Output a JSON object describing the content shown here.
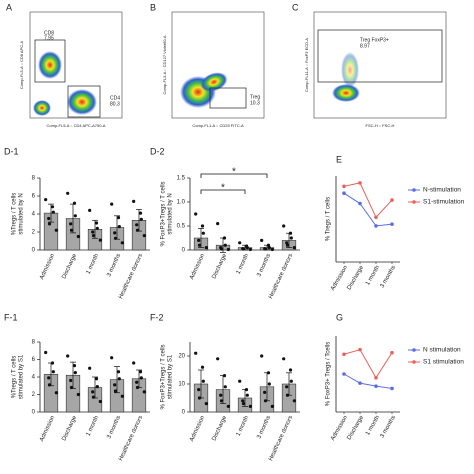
{
  "flow_panels": [
    {
      "label": "A",
      "xlabel": "Comp-FL5-A :: CD4 APC-A750-A",
      "ylabel": "Comp-FL5-A :: CD8 APC-A",
      "gates": [
        {
          "name": "CD8",
          "value": 7.95
        },
        {
          "name": "CD4",
          "value": 80.3
        }
      ]
    },
    {
      "label": "B",
      "xlabel": "Comp-FL1-A :: CD25 FITC-A",
      "ylabel": "Comp-FL3-A :: CD127 Violet60-A",
      "gates": [
        {
          "name": "Treg",
          "value": 10.3
        }
      ]
    },
    {
      "label": "C",
      "xlabel": "FSC-H :: FSC-H",
      "ylabel": "Comp-FL11-A :: FoxP3 ECD-A",
      "gates": [
        {
          "name": "Treg FoxP3+",
          "value": 8.97
        }
      ]
    }
  ],
  "chart_data": [
    {
      "type": "bar",
      "label": "D-1",
      "ylabel": [
        "%Tregs / T cells",
        "stimulated by N"
      ],
      "categories": [
        "Admission",
        "Discharge",
        "1 month",
        "3 months",
        "Healthcare donors"
      ],
      "values": [
        4.1,
        3.5,
        2.3,
        2.5,
        3.3
      ],
      "errors": [
        1.0,
        1.6,
        1.0,
        1.3,
        1.2
      ],
      "points": [
        [
          5.6,
          4.8,
          4.2,
          3.5,
          2.9,
          2.2
        ],
        [
          6.3,
          5.2,
          3.8,
          2.9,
          2.2,
          1.5
        ],
        [
          4.4,
          3.0,
          2.4,
          2.0,
          1.6,
          1.1
        ],
        [
          5.1,
          3.6,
          2.6,
          1.9,
          1.3,
          0.8
        ],
        [
          5.4,
          4.1,
          3.4,
          2.8,
          2.2,
          1.6
        ]
      ],
      "color": "#a6a6a6",
      "ylim": [
        0,
        8
      ],
      "yticks": [
        0,
        2,
        4,
        6,
        8
      ]
    },
    {
      "type": "bar",
      "label": "D-2",
      "ylabel": [
        "% FoxP3+Tregs / T cells",
        "stimulated by N"
      ],
      "categories": [
        "Admission",
        "Discharge",
        "1 month",
        "3 months",
        "Healthcare donors"
      ],
      "values": [
        0.25,
        0.1,
        0.05,
        0.05,
        0.2
      ],
      "errors": [
        0.2,
        0.15,
        0.05,
        0.05,
        0.15
      ],
      "points": [
        [
          0.75,
          0.5,
          0.35,
          0.2,
          0.1,
          0.05
        ],
        [
          0.55,
          0.25,
          0.1,
          0.05,
          0.02,
          0.01
        ],
        [
          0.15,
          0.08,
          0.05,
          0.03,
          0.02,
          0.01
        ],
        [
          0.2,
          0.1,
          0.05,
          0.03,
          0.02,
          0.01
        ],
        [
          0.5,
          0.35,
          0.25,
          0.15,
          0.1,
          0.05
        ]
      ],
      "color": "#a6a6a6",
      "ylim": [
        0,
        1.5
      ],
      "yticks": [
        0,
        0.5,
        {
          "value": 1,
          "label": "1.0"
        },
        1.5
      ],
      "annotations": [
        "*",
        "*"
      ]
    },
    {
      "type": "line",
      "label": "E",
      "ylabel": [
        "% Tregs / T cells"
      ],
      "categories": [
        "Admission",
        "Discharge",
        "1 month",
        "3 months"
      ],
      "series": [
        {
          "name": "N-stimulation",
          "color": "#5b6ee1",
          "values": [
            4.0,
            3.4,
            2.1,
            2.2
          ]
        },
        {
          "name": "S1-stimulation",
          "color": "#e8615a",
          "values": [
            4.4,
            4.6,
            2.6,
            3.6
          ]
        }
      ],
      "ylim": [
        0,
        5
      ]
    },
    {
      "type": "bar",
      "label": "F-1",
      "ylabel": [
        "%Tregs / T cells",
        "stimulated by S1"
      ],
      "categories": [
        "Admission",
        "Discharge",
        "1 month",
        "3 months",
        "Healthcare donors"
      ],
      "values": [
        4.3,
        4.2,
        2.8,
        3.7,
        3.8
      ],
      "errors": [
        1.3,
        1.5,
        1.2,
        1.5,
        1.0
      ],
      "points": [
        [
          6.8,
          5.6,
          4.6,
          3.9,
          3.1,
          2.2
        ],
        [
          6.4,
          5.3,
          4.5,
          3.6,
          2.8,
          2.0
        ],
        [
          5.0,
          3.8,
          2.9,
          2.3,
          1.7,
          1.2
        ],
        [
          6.2,
          4.6,
          3.8,
          3.1,
          2.4,
          1.8
        ],
        [
          5.6,
          4.6,
          3.9,
          3.4,
          2.8,
          2.3
        ]
      ],
      "color": "#a6a6a6",
      "ylim": [
        0,
        8
      ],
      "yticks": [
        0,
        2,
        4,
        6,
        8
      ]
    },
    {
      "type": "bar",
      "label": "F-2",
      "ylabel": [
        "% FoxP3+Tregs / T cells",
        "stimulated by S1"
      ],
      "categories": [
        "Admission",
        "Discharge",
        "1 month",
        "3 months",
        "Healthcare donors"
      ],
      "values": [
        10,
        8,
        5,
        9,
        10
      ],
      "errors": [
        5,
        5,
        3,
        5,
        4
      ],
      "points": [
        [
          21,
          16,
          11,
          8,
          5,
          3
        ],
        [
          19,
          13,
          9,
          6,
          4,
          2
        ],
        [
          11,
          8,
          6,
          4,
          3,
          2
        ],
        [
          20,
          14,
          10,
          7,
          4,
          2
        ],
        [
          19,
          15,
          11,
          9,
          6,
          4
        ]
      ],
      "color": "#a6a6a6",
      "ylim": [
        0,
        25
      ],
      "yticks": [
        0,
        10,
        20
      ]
    },
    {
      "type": "line",
      "label": "G",
      "ylabel": [
        "% FoxP3+ Tregs / Tcells"
      ],
      "categories": [
        "Admission",
        "Discharge",
        "1 month",
        "3 months"
      ],
      "series": [
        {
          "name": "N stimulation",
          "color": "#5b6ee1",
          "values": [
            5.0,
            3.8,
            3.4,
            3.1
          ]
        },
        {
          "name": "S1 stimulation",
          "color": "#e8615a",
          "values": [
            7.6,
            8.2,
            4.5,
            7.8
          ]
        }
      ],
      "ylim": [
        0,
        10
      ]
    }
  ]
}
